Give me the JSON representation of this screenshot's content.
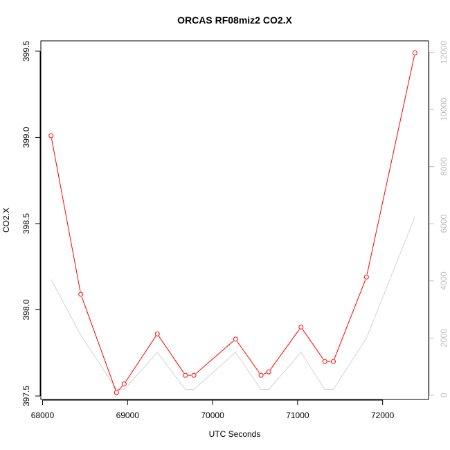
{
  "chart_data": {
    "type": "line",
    "title": "ORCAS RF08miz2 CO2.X",
    "xlabel": "UTC Seconds",
    "ylabel": "CO2.X",
    "xlim": [
      67980,
      72540
    ],
    "ylim": [
      397.48,
      399.56
    ],
    "y2lim": [
      -150,
      12400
    ],
    "x_ticks": [
      "68000",
      "69000",
      "70000",
      "71000",
      "72000"
    ],
    "y_ticks": [
      "397.5",
      "398.0",
      "398.5",
      "399.0",
      "399.5"
    ],
    "y2_ticks": [
      "0",
      "2000",
      "4000",
      "6000",
      "8000",
      "10000",
      "12000"
    ],
    "grid": false,
    "colors": {
      "primary": "#ff0000",
      "secondary": "#d3d3d3",
      "axis": "#000000",
      "secondary_axis": "#bebebe"
    },
    "series": [
      {
        "axis": "left",
        "style": "line-with-circles",
        "x": [
          68100,
          68450,
          68870,
          68960,
          69350,
          69680,
          69780,
          70270,
          70570,
          70660,
          71040,
          71320,
          71420,
          71810,
          72380
        ],
        "y": [
          399.01,
          398.09,
          397.52,
          397.57,
          397.86,
          397.62,
          397.62,
          397.83,
          397.62,
          397.64,
          397.9,
          397.7,
          397.7,
          398.19,
          399.49
        ]
      },
      {
        "axis": "right",
        "style": "line",
        "x": [
          68100,
          68450,
          68870,
          68960,
          69350,
          69680,
          69780,
          70270,
          70570,
          70660,
          71040,
          71320,
          71420,
          71810,
          72380
        ],
        "y": [
          4050,
          2100,
          200,
          200,
          1500,
          200,
          200,
          1500,
          200,
          200,
          1500,
          200,
          200,
          2000,
          6250
        ]
      }
    ]
  }
}
